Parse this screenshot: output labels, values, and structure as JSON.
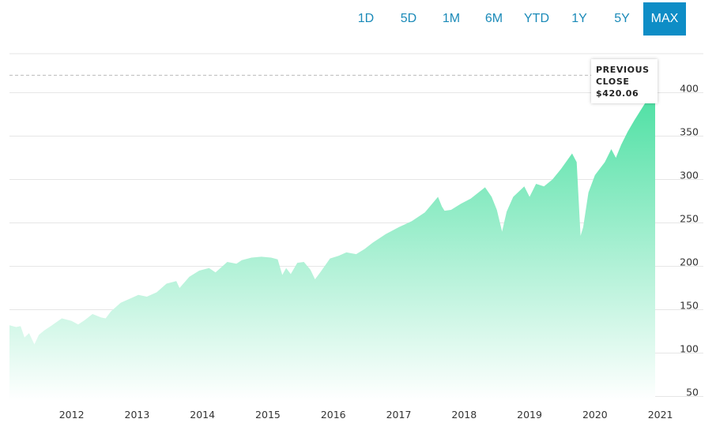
{
  "ranges": {
    "options": [
      "1D",
      "5D",
      "1M",
      "6M",
      "YTD",
      "1Y",
      "5Y",
      "MAX"
    ],
    "selected": "MAX"
  },
  "callout": {
    "line1": "PREVIOUS",
    "line2": "CLOSE",
    "value": "$420.06"
  },
  "colors": {
    "accent": "#0e8dc6",
    "area_top": "#4fe0a4",
    "area_bottom": "#ffffff",
    "grid": "#e6e6e6",
    "dashed": "#bbbbbb"
  },
  "chart_data": {
    "type": "area",
    "xlabel": "",
    "ylabel": "",
    "x_ticks": [
      "2012",
      "2013",
      "2014",
      "2015",
      "2016",
      "2017",
      "2018",
      "2019",
      "2020",
      "2021"
    ],
    "y_ticks": [
      50,
      100,
      150,
      200,
      250,
      300,
      350,
      400
    ],
    "xlim": [
      2011.45,
      2021.32
    ],
    "ylim": [
      45,
      445
    ],
    "grid": true,
    "reference_line": {
      "label": "PREVIOUS CLOSE",
      "value": 420.06
    },
    "series": [
      {
        "x": [
          2011.45,
          2011.55,
          2011.62,
          2011.68,
          2011.75,
          2011.83,
          2011.9,
          2011.98,
          2012.1,
          2012.25,
          2012.4,
          2012.5,
          2012.6,
          2012.72,
          2012.85,
          2012.92,
          2013.0,
          2013.15,
          2013.3,
          2013.42,
          2013.55,
          2013.7,
          2013.85,
          2014.0,
          2014.05,
          2014.2,
          2014.35,
          2014.5,
          2014.6,
          2014.78,
          2014.92,
          2015.0,
          2015.15,
          2015.3,
          2015.45,
          2015.55,
          2015.62,
          2015.68,
          2015.75,
          2015.85,
          2015.95,
          2016.05,
          2016.12,
          2016.2,
          2016.35,
          2016.48,
          2016.6,
          2016.75,
          2016.88,
          2017.0,
          2017.2,
          2017.4,
          2017.6,
          2017.8,
          2018.0,
          2018.06,
          2018.1,
          2018.2,
          2018.35,
          2018.5,
          2018.72,
          2018.82,
          2018.9,
          2018.98,
          2019.05,
          2019.15,
          2019.32,
          2019.4,
          2019.5,
          2019.62,
          2019.75,
          2019.88,
          2020.05,
          2020.12,
          2020.18,
          2020.22,
          2020.3,
          2020.4,
          2020.55,
          2020.65,
          2020.72,
          2020.8,
          2020.9,
          2021.0,
          2021.1,
          2021.2,
          2021.28,
          2021.32
        ],
        "y": [
          132,
          130,
          131,
          118,
          123,
          110,
          121,
          126,
          132,
          140,
          137,
          133,
          138,
          145,
          141,
          140,
          148,
          158,
          163,
          167,
          165,
          170,
          180,
          183,
          175,
          188,
          195,
          198,
          193,
          205,
          203,
          207,
          210,
          211,
          210,
          208,
          190,
          198,
          191,
          204,
          205,
          196,
          185,
          193,
          209,
          212,
          216,
          214,
          220,
          227,
          237,
          245,
          252,
          262,
          280,
          269,
          264,
          265,
          272,
          278,
          291,
          280,
          265,
          240,
          263,
          280,
          292,
          280,
          295,
          292,
          300,
          312,
          330,
          320,
          235,
          245,
          285,
          305,
          320,
          335,
          325,
          340,
          355,
          368,
          380,
          392,
          395,
          396
        ]
      }
    ]
  }
}
